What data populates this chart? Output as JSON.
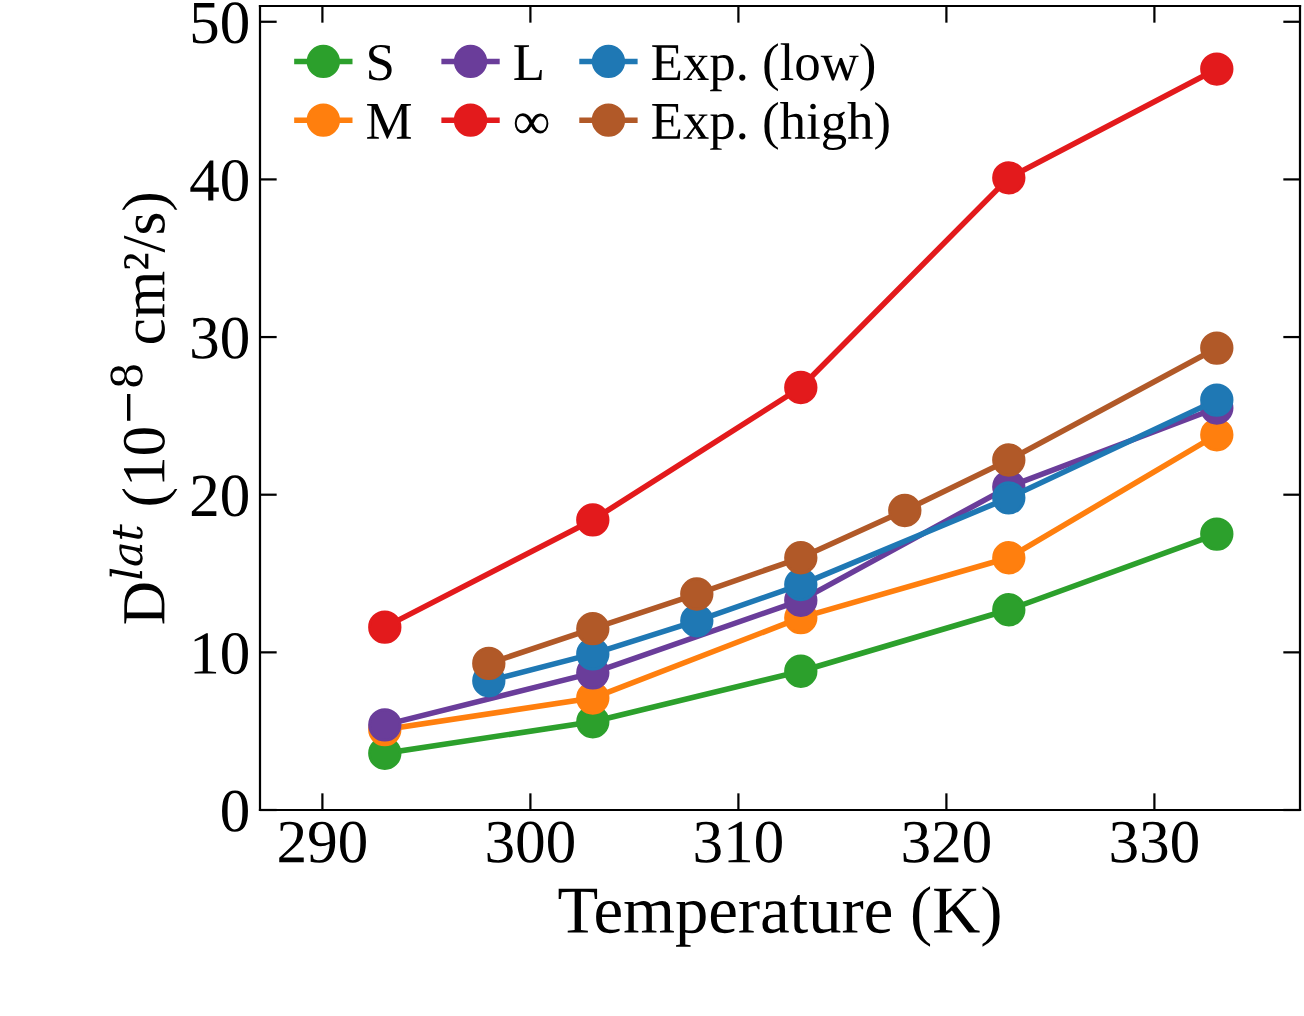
{
  "chart_data": {
    "type": "line",
    "xlabel": "Temperature (K)",
    "ylabel": "D$^{lat}$ (10$^{−8}$ cm²/s)",
    "xlim": [
      287,
      337
    ],
    "xticks": [
      290,
      300,
      310,
      320,
      330
    ],
    "ylim": [
      0,
      51
    ],
    "yticks": [
      0,
      10,
      20,
      30,
      40,
      50
    ],
    "marker": "circle",
    "line_style": "solid",
    "grid": false,
    "legend": "top left",
    "series": [
      {
        "name": "S",
        "color": "#2ca02c",
        "x": [
          293,
          303,
          313,
          323,
          333
        ],
        "values": [
          3.6,
          5.6,
          8.8,
          12.7,
          17.5
        ]
      },
      {
        "name": "M",
        "color": "#ff7f0e",
        "x": [
          293,
          303,
          313,
          323,
          333
        ],
        "values": [
          5.1,
          7.1,
          12.2,
          16.0,
          23.8
        ]
      },
      {
        "name": "L",
        "color": "#6a3d9a",
        "x": [
          293,
          303,
          313,
          323,
          333
        ],
        "values": [
          5.4,
          8.7,
          13.3,
          20.5,
          25.5
        ]
      },
      {
        "name": "∞",
        "color": "#e31a1c",
        "x": [
          293,
          303,
          313,
          323,
          333
        ],
        "values": [
          11.6,
          18.4,
          26.8,
          40.1,
          47.0
        ]
      },
      {
        "name": "Exp. (low)",
        "color": "#1f78b4",
        "x": [
          298,
          303,
          308,
          313,
          323,
          333
        ],
        "values": [
          8.2,
          9.9,
          12.0,
          14.3,
          19.8,
          26.0
        ]
      },
      {
        "name": "Exp. (high)",
        "color": "#b15928",
        "x": [
          298,
          303,
          308,
          313,
          318,
          323,
          333
        ],
        "values": [
          9.3,
          11.5,
          13.7,
          16.0,
          19.0,
          22.2,
          29.3
        ]
      }
    ]
  }
}
